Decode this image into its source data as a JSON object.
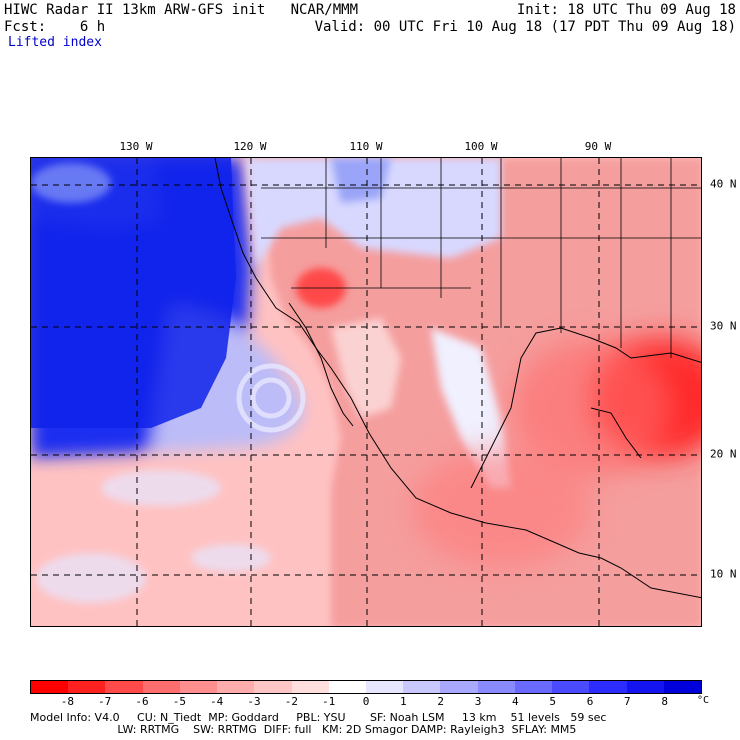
{
  "header": {
    "left_line1": "HIWC Radar II 13km ARW-GFS init   NCAR/MMM",
    "left_line2": "Fcst:    6 h",
    "field": "Lifted index",
    "right_line1": "Init: 18 UTC Thu 09 Aug 18",
    "right_line2": "Valid: 00 UTC Fri 10 Aug 18 (17 PDT Thu 09 Aug 18)"
  },
  "map": {
    "lon_labels": [
      "130 W",
      "120 W",
      "110 W",
      "100 W",
      "90 W"
    ],
    "lat_labels": [
      "40 N",
      "30 N",
      "20 N",
      "10 N"
    ],
    "ocean_color": "#0a1ee0",
    "land_color": "#f39a9a"
  },
  "colorbar": {
    "colors": [
      "#ff0000",
      "#ff2020",
      "#ff4a4a",
      "#ff6e6e",
      "#ff8e8e",
      "#ffacac",
      "#ffc6c6",
      "#ffdede",
      "#ffffff",
      "#e6e6ff",
      "#c8c8ff",
      "#a8a8ff",
      "#8a8aff",
      "#6a6aff",
      "#4a4aff",
      "#2c2cff",
      "#1414f0",
      "#0000dd"
    ],
    "labels": [
      "-8",
      "-7",
      "-6",
      "-5",
      "-4",
      "-3",
      "-2",
      "-1",
      "0",
      "1",
      "2",
      "3",
      "4",
      "5",
      "6",
      "7",
      "8"
    ],
    "unit": "°C"
  },
  "footer": {
    "line1": "Model Info: V4.0     CU: N_Tiedt  MP: Goddard     PBL: YSU       SF: Noah LSM     13 km    51 levels   59 sec",
    "line2": "                         LW: RRTMG    SW: RRTMG  DIFF: full   KM: 2D Smagor DAMP: Rayleigh3  SFLAY: MM5"
  }
}
